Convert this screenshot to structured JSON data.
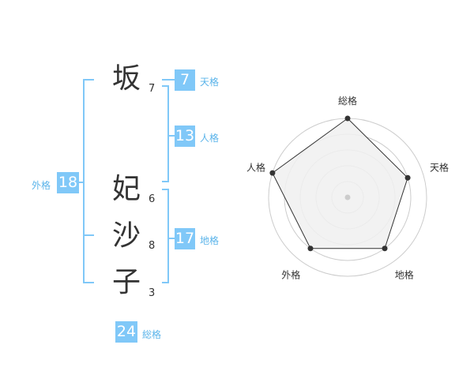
{
  "name": {
    "chars": [
      {
        "char": "坂",
        "strokes": "7"
      },
      {
        "char": "妃",
        "strokes": "6"
      },
      {
        "char": "沙",
        "strokes": "8"
      },
      {
        "char": "子",
        "strokes": "3"
      }
    ]
  },
  "kaku": {
    "ten": {
      "label": "天格",
      "value": "7"
    },
    "jin": {
      "label": "人格",
      "value": "13"
    },
    "chi": {
      "label": "地格",
      "value": "17"
    },
    "gai": {
      "label": "外格",
      "value": "18"
    },
    "so": {
      "label": "総格",
      "value": "24"
    }
  },
  "colors": {
    "accent": "#80c8f8",
    "radar_fill": "#f0f0f0",
    "radar_line": "#333333"
  },
  "chart_data": {
    "type": "radar",
    "axes": [
      "総格",
      "天格",
      "地格",
      "外格",
      "人格"
    ],
    "values": [
      5,
      4,
      4,
      4,
      5
    ],
    "rmax": 5,
    "grid_rings": 5
  }
}
